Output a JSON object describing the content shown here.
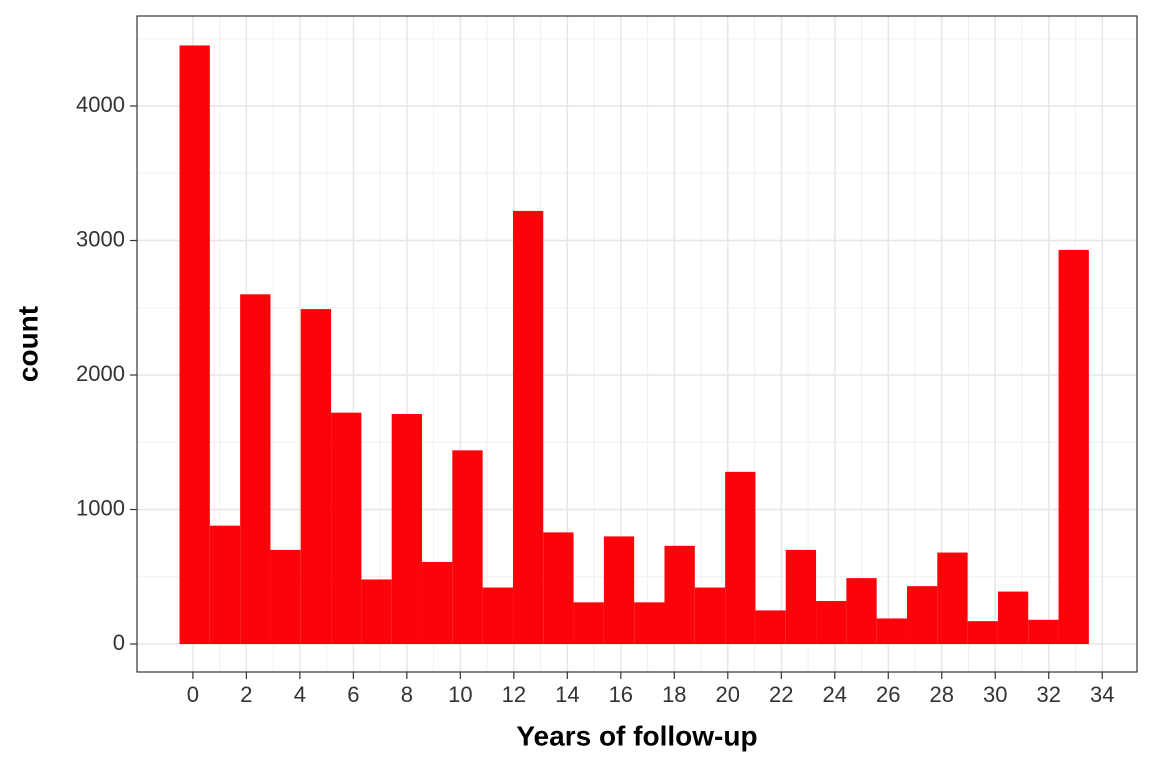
{
  "chart_data": {
    "type": "histogram",
    "x_label": "Years of follow-up",
    "y_label": "count",
    "bins": [
      -0.5,
      0.633,
      1.767,
      2.9,
      4.033,
      5.167,
      6.3,
      7.433,
      8.567,
      9.7,
      10.833,
      11.967,
      13.1,
      14.233,
      15.367,
      16.5,
      17.633,
      18.767,
      19.9,
      21.033,
      22.167,
      23.3,
      24.433,
      25.567,
      26.7,
      27.833,
      28.967,
      30.1,
      31.233,
      32.367,
      33.5
    ],
    "values": [
      4450,
      880,
      2600,
      700,
      2490,
      1720,
      480,
      1710,
      610,
      1440,
      420,
      3220,
      830,
      310,
      800,
      310,
      730,
      420,
      1280,
      250,
      700,
      320,
      490,
      190,
      430,
      680,
      170,
      390,
      180,
      2930
    ],
    "color": "#fc0309",
    "xlim": [
      -2.09,
      35.3
    ],
    "ylim": [
      -208,
      4669
    ],
    "xticks": [
      0,
      2,
      4,
      6,
      8,
      10,
      12,
      14,
      16,
      18,
      20,
      22,
      24,
      26,
      28,
      30,
      32,
      34
    ],
    "yticks": [
      0,
      1000,
      2000,
      3000,
      4000
    ],
    "grid": true
  }
}
